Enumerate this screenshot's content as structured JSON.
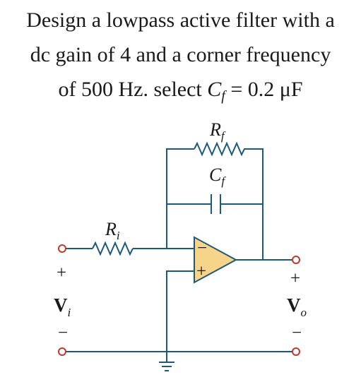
{
  "problem": {
    "line1": "Design a lowpass active filter with a",
    "line2": "dc gain of 4 and a corner frequency",
    "line3_prefix": "of 500 Hz.  select ",
    "line3_var": "C",
    "line3_sub": "f",
    "line3_suffix": " = 0.2 μF"
  },
  "circuit": {
    "feedback_resistor": {
      "symbol": "R",
      "sub": "f"
    },
    "feedback_capacitor": {
      "symbol": "C",
      "sub": "f"
    },
    "input_resistor": {
      "symbol": "R",
      "sub": "i"
    },
    "opamp": {
      "inverting": "−",
      "noninverting": "+"
    },
    "input": {
      "plus": "+",
      "minus": "−",
      "symbol": "V",
      "sub": "i"
    },
    "output": {
      "plus": "+",
      "minus": "−",
      "symbol": "V",
      "sub": "o"
    },
    "colors": {
      "wire": "#1c5a7a",
      "terminal": "#c0392b",
      "opamp_fill": "#f6d58a"
    }
  }
}
